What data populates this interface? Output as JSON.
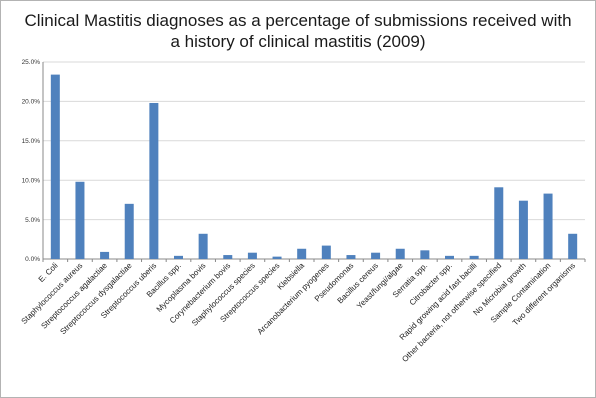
{
  "chart_data": {
    "type": "bar",
    "title_lines": [
      "Clinical Mastitis diagnoses as a percentage of submissions received with",
      "a history of clinical mastitis (2009)"
    ],
    "xlabel": "",
    "ylabel": "",
    "ylim": [
      0,
      25
    ],
    "yticks": [
      0,
      5,
      10,
      15,
      20,
      25
    ],
    "ytick_labels": [
      "0.0%",
      "5.0%",
      "10.0%",
      "15.0%",
      "20.0%",
      "25.0%"
    ],
    "grid": true,
    "legend": "none",
    "bar_color": "#4f81bd",
    "grid_color": "#d9d9d9",
    "axis_color": "#888888",
    "categories": [
      "E. Coli",
      "Staphylococcus aureus",
      "Streptococcus agalactiae",
      "Streptococcus dysgalactiae",
      "Streptococcus uberis",
      "Bacillus spp.",
      "Mycoplasma bovis",
      "Corynebacterium bovis",
      "Staphylococcus species",
      "Streptococcus species",
      "Klebsiella",
      "Arcanobacterium pyogenes",
      "Pseudomonas",
      "Bacillus cereus",
      "Yeast/fungi/algae",
      "Serratia spp.",
      "Citrobacter spp.",
      "Rapid growing acid fast bacilli",
      "Other bacteria, not otherwise specified",
      "No Microbial growth",
      "Sample Contamination",
      "Two different organisms"
    ],
    "values": [
      23.4,
      9.8,
      0.9,
      7.0,
      19.8,
      0.4,
      3.2,
      0.5,
      0.8,
      0.3,
      1.3,
      1.7,
      0.5,
      0.8,
      1.3,
      1.1,
      0.4,
      0.4,
      9.1,
      7.4,
      8.3,
      3.2
    ]
  }
}
